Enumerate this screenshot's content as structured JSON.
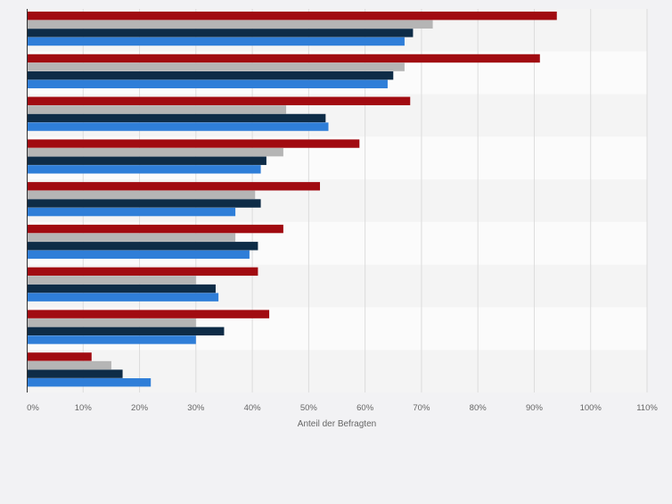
{
  "chart_data": {
    "type": "bar",
    "orientation": "horizontal",
    "categories": [
      "",
      "",
      "",
      "",
      "",
      "",
      "",
      "",
      ""
    ],
    "series": [
      {
        "color": "#a10b11",
        "values": [
          94,
          91,
          68,
          59,
          52,
          45.5,
          41,
          43,
          11.5
        ]
      },
      {
        "color": "#b5b5b5",
        "values": [
          72,
          67,
          46,
          45.5,
          40.5,
          37,
          30,
          30,
          15
        ]
      },
      {
        "color": "#0e2c47",
        "values": [
          68.5,
          65,
          53,
          42.5,
          41.5,
          41,
          33.5,
          35,
          17
        ]
      },
      {
        "color": "#2f7ed8",
        "values": [
          67,
          64,
          53.5,
          41.5,
          37,
          39.5,
          34,
          30,
          22
        ]
      }
    ],
    "xlim": [
      0,
      110
    ],
    "xticks": [
      "0%",
      "10%",
      "20%",
      "30%",
      "40%",
      "50%",
      "60%",
      "70%",
      "80%",
      "90%",
      "100%",
      "110%"
    ],
    "xlabel": "Anteil der Befragten",
    "grid": true
  }
}
